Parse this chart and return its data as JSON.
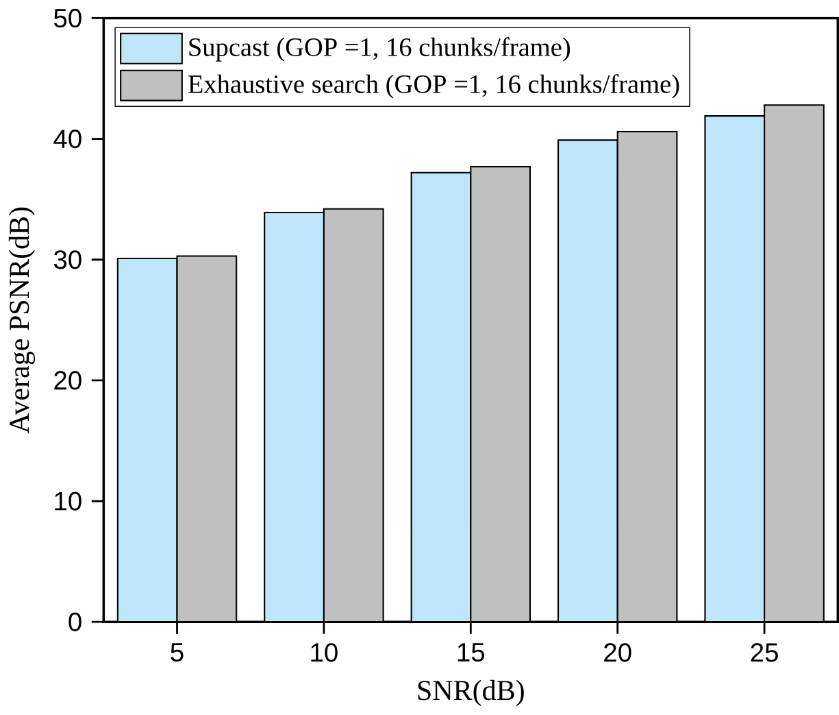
{
  "chart_data": {
    "type": "bar",
    "xlabel": "SNR(dB)",
    "ylabel": "Average PSNR(dB)",
    "categories": [
      "5",
      "10",
      "15",
      "20",
      "25"
    ],
    "series": [
      {
        "name": "Supcast  (GOP =1, 16 chunks/frame)",
        "color": "#bfe6f8",
        "values": [
          30.1,
          33.9,
          37.2,
          39.9,
          41.9
        ]
      },
      {
        "name": "Exhaustive search  (GOP =1, 16 chunks/frame)",
        "color": "#c0c0c0",
        "values": [
          30.3,
          34.2,
          37.7,
          40.6,
          42.8
        ]
      }
    ],
    "ylim": [
      0,
      50
    ],
    "yticks": [
      0,
      10,
      20,
      30,
      40,
      50
    ],
    "legend": "top left",
    "grid": false
  }
}
